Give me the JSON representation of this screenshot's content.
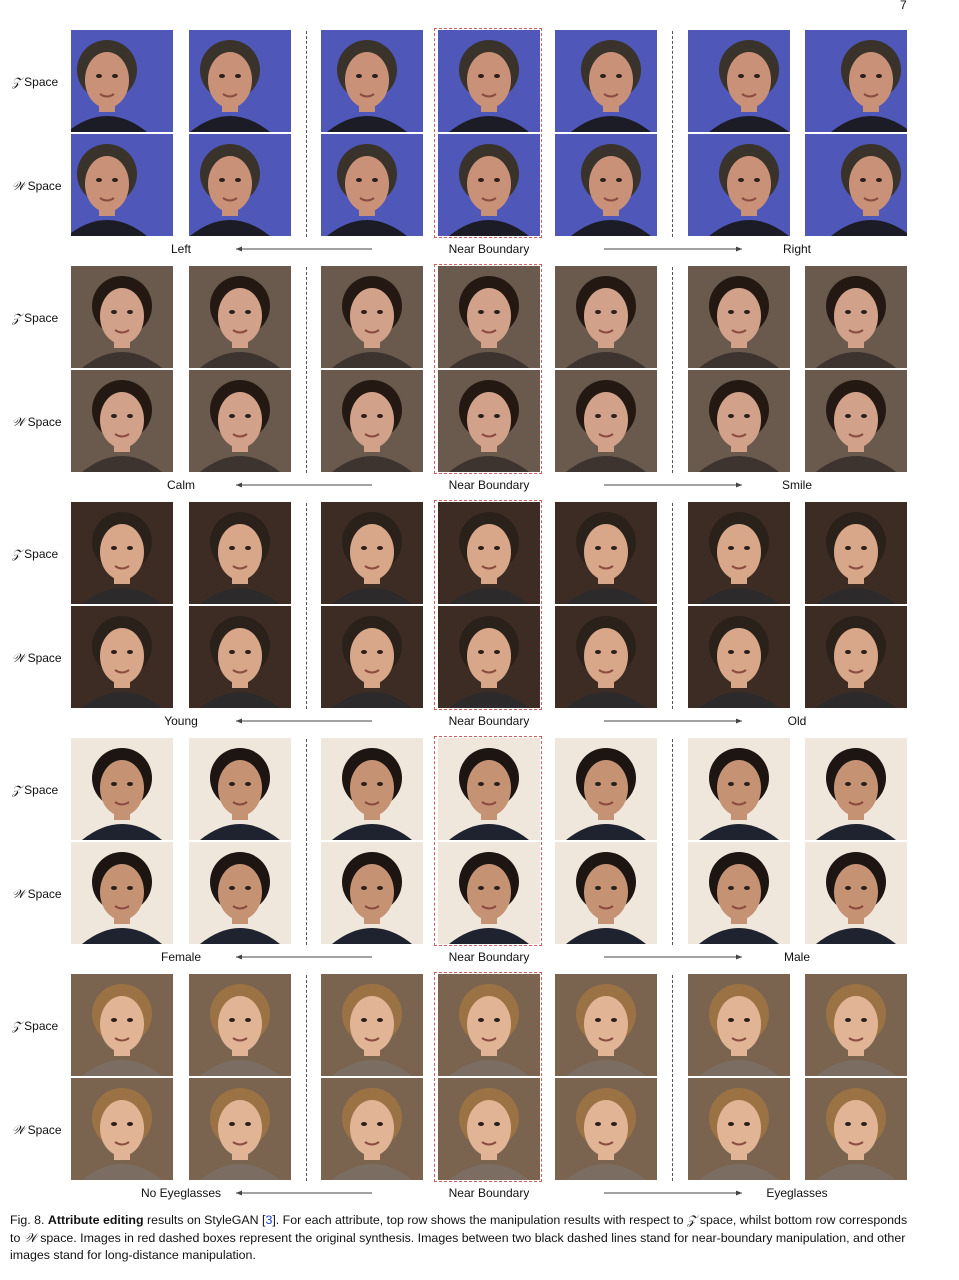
{
  "page_number": "7",
  "row_labels": {
    "z": "Space",
    "w": "Space",
    "z_symbol": "𝒵",
    "w_symbol": "𝒲"
  },
  "near_label": "Near Boundary",
  "panels": [
    {
      "left": "Left",
      "right": "Right",
      "palette": {
        "bg": "#4f57b8",
        "skin": "#c99278",
        "hair": "#3a332c",
        "cloth": "#1b1c26"
      }
    },
    {
      "left": "Calm",
      "right": "Smile",
      "palette": {
        "bg": "#6a5a4e",
        "skin": "#d2a189",
        "hair": "#241912",
        "cloth": "#3d3430"
      }
    },
    {
      "left": "Young",
      "right": "Old",
      "palette": {
        "bg": "#3d2c24",
        "skin": "#d8a688",
        "hair": "#2b211b",
        "cloth": "#2d2a2c"
      }
    },
    {
      "left": "Female",
      "right": "Male",
      "palette": {
        "bg": "#efe6dc",
        "skin": "#c69274",
        "hair": "#1c1512",
        "cloth": "#1f2330"
      }
    },
    {
      "left": "No Eyeglasses",
      "right": "Eyeglasses",
      "palette": {
        "bg": "#7a6450",
        "skin": "#e2b496",
        "hair": "#9b7244",
        "cloth": "#7b6d62"
      }
    }
  ],
  "caption": {
    "fig": "Fig. 8.",
    "bold": "Attribute editing",
    "t1": " results on StyleGAN [",
    "cite": "3",
    "t2": "]. For each attribute, top row shows the manipulation results with respect to ",
    "z_sym": "𝒵",
    "t3": " space, whilst bottom row corresponds to ",
    "w_sym": "𝒲",
    "t4": " space. Images in red dashed boxes represent the original synthesis. Images between two black dashed lines stand for near-boundary manipulation, and other images stand for long-distance manipulation."
  }
}
